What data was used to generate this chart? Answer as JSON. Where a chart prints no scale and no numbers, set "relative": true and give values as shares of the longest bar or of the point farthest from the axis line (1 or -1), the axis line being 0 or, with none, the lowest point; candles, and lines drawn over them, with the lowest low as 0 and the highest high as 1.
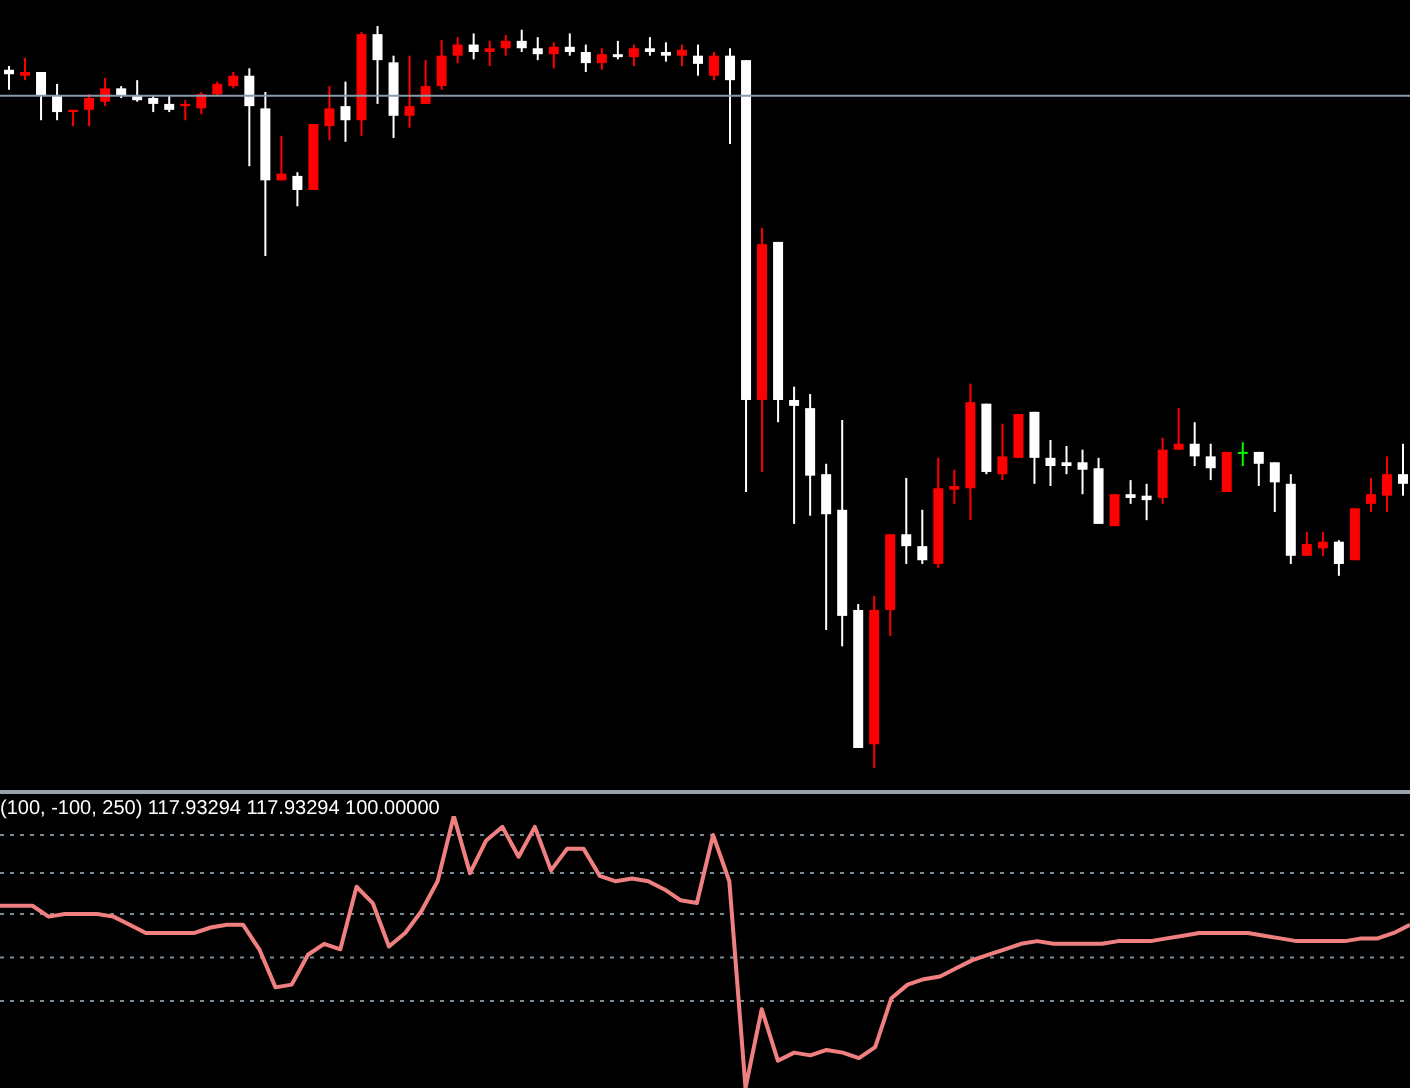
{
  "chart_data": [
    {
      "type": "candlestick",
      "relative": true,
      "tick_labels": false,
      "categories": [
        null,
        null,
        null,
        null,
        null,
        null,
        null,
        null,
        null,
        null,
        null,
        null,
        null,
        null,
        null,
        null,
        null,
        null,
        null,
        null,
        null,
        null,
        null,
        null,
        null,
        null,
        null,
        null,
        null,
        null,
        null,
        null,
        null,
        null,
        null,
        null,
        null,
        null,
        null,
        null,
        null,
        null,
        null,
        null,
        null,
        null,
        null,
        null,
        null,
        null,
        null,
        null,
        null,
        null,
        null,
        null,
        null,
        null,
        null,
        null,
        null,
        null,
        null,
        null,
        null,
        null,
        null,
        null,
        null,
        null,
        null,
        null,
        null,
        null,
        null,
        null,
        null,
        null,
        null,
        null,
        null,
        null,
        null,
        null,
        null,
        null,
        null,
        null
      ],
      "ohlc": [
        [
          0.941,
          0.946,
          0.914,
          0.935
        ],
        [
          0.933,
          0.957,
          0.927,
          0.938
        ],
        [
          0.938,
          0.938,
          0.873,
          0.906
        ],
        [
          0.906,
          0.922,
          0.873,
          0.884
        ],
        [
          0.884,
          0.887,
          0.865,
          0.887
        ],
        [
          0.887,
          0.908,
          0.865,
          0.903
        ],
        [
          0.898,
          0.93,
          0.892,
          0.916
        ],
        [
          0.916,
          0.919,
          0.903,
          0.906
        ],
        [
          0.906,
          0.927,
          0.898,
          0.9
        ],
        [
          0.903,
          0.906,
          0.884,
          0.895
        ],
        [
          0.895,
          0.906,
          0.884,
          0.887
        ],
        [
          0.892,
          0.9,
          0.873,
          0.895
        ],
        [
          0.889,
          0.911,
          0.881,
          0.908
        ],
        [
          0.908,
          0.925,
          0.906,
          0.922
        ],
        [
          0.919,
          0.938,
          0.916,
          0.933
        ],
        [
          0.933,
          0.943,
          0.811,
          0.892
        ],
        [
          0.889,
          0.911,
          0.69,
          0.792
        ],
        [
          0.792,
          0.852,
          0.792,
          0.801
        ],
        [
          0.798,
          0.803,
          0.757,
          0.779
        ],
        [
          0.779,
          0.868,
          0.779,
          0.868
        ],
        [
          0.865,
          0.919,
          0.846,
          0.889
        ],
        [
          0.892,
          0.925,
          0.844,
          0.873
        ],
        [
          0.873,
          0.992,
          0.852,
          0.989
        ],
        [
          0.989,
          1.0,
          0.895,
          0.954
        ],
        [
          0.951,
          0.96,
          0.849,
          0.879
        ],
        [
          0.879,
          0.96,
          0.863,
          0.892
        ],
        [
          0.895,
          0.954,
          0.895,
          0.919
        ],
        [
          0.919,
          0.981,
          0.914,
          0.96
        ],
        [
          0.96,
          0.985,
          0.95,
          0.975
        ],
        [
          0.975,
          0.99,
          0.955,
          0.965
        ],
        [
          0.965,
          0.98,
          0.946,
          0.97
        ],
        [
          0.97,
          0.988,
          0.96,
          0.98
        ],
        [
          0.98,
          0.995,
          0.965,
          0.97
        ],
        [
          0.97,
          0.985,
          0.954,
          0.962
        ],
        [
          0.962,
          0.978,
          0.943,
          0.972
        ],
        [
          0.972,
          0.99,
          0.96,
          0.965
        ],
        [
          0.965,
          0.975,
          0.938,
          0.95
        ],
        [
          0.95,
          0.97,
          0.941,
          0.962
        ],
        [
          0.962,
          0.98,
          0.955,
          0.958
        ],
        [
          0.958,
          0.975,
          0.946,
          0.97
        ],
        [
          0.97,
          0.985,
          0.96,
          0.965
        ],
        [
          0.965,
          0.978,
          0.952,
          0.96
        ],
        [
          0.96,
          0.975,
          0.946,
          0.968
        ],
        [
          0.96,
          0.975,
          0.933,
          0.949
        ],
        [
          0.933,
          0.965,
          0.927,
          0.96
        ],
        [
          0.96,
          0.97,
          0.841,
          0.927
        ],
        [
          0.954,
          0.954,
          0.372,
          0.496
        ],
        [
          0.496,
          0.728,
          0.399,
          0.706
        ],
        [
          0.709,
          0.709,
          0.466,
          0.496
        ],
        [
          0.496,
          0.514,
          0.329,
          0.488
        ],
        [
          0.485,
          0.504,
          0.34,
          0.394
        ],
        [
          0.396,
          0.41,
          0.186,
          0.342
        ],
        [
          0.348,
          0.469,
          0.164,
          0.205
        ],
        [
          0.213,
          0.221,
          0.027,
          0.027
        ],
        [
          0.032,
          0.232,
          0,
          0.213
        ],
        [
          0.213,
          0.315,
          0.178,
          0.315
        ],
        [
          0.315,
          0.391,
          0.275,
          0.299
        ],
        [
          0.299,
          0.348,
          0.275,
          0.28
        ],
        [
          0.275,
          0.418,
          0.27,
          0.377
        ],
        [
          0.375,
          0.402,
          0.356,
          0.38
        ],
        [
          0.377,
          0.518,
          0.334,
          0.493
        ],
        [
          0.491,
          0.491,
          0.396,
          0.399
        ],
        [
          0.396,
          0.464,
          0.388,
          0.42
        ],
        [
          0.418,
          0.477,
          0.418,
          0.477
        ],
        [
          0.48,
          0.48,
          0.383,
          0.418
        ],
        [
          0.418,
          0.442,
          0.38,
          0.407
        ],
        [
          0.412,
          0.434,
          0.396,
          0.407
        ],
        [
          0.412,
          0.429,
          0.369,
          0.402
        ],
        [
          0.404,
          0.418,
          0.329,
          0.329
        ],
        [
          0.326,
          0.369,
          0.326,
          0.369
        ],
        [
          0.369,
          0.388,
          0.356,
          0.364
        ],
        [
          0.367,
          0.383,
          0.334,
          0.361
        ],
        [
          0.364,
          0.445,
          0.356,
          0.429
        ],
        [
          0.429,
          0.485,
          0.429,
          0.437
        ],
        [
          0.437,
          0.466,
          0.407,
          0.42
        ],
        [
          0.42,
          0.437,
          0.388,
          0.404
        ],
        [
          0.372,
          0.426,
          0.372,
          0.426
        ],
        [
          0.426,
          0.439,
          0.407,
          0.426
        ],
        [
          0.426,
          0.426,
          0.38,
          0.41
        ],
        [
          0.412,
          0.412,
          0.345,
          0.385
        ],
        [
          0.383,
          0.396,
          0.275,
          0.286
        ],
        [
          0.286,
          0.318,
          0.286,
          0.302
        ],
        [
          0.296,
          0.318,
          0.286,
          0.305
        ],
        [
          0.305,
          0.307,
          0.259,
          0.275
        ],
        [
          0.28,
          0.35,
          0.28,
          0.35
        ],
        [
          0.356,
          0.391,
          0.345,
          0.369
        ],
        [
          0.367,
          0.42,
          0.345,
          0.396
        ],
        [
          0.396,
          0.437,
          0.367,
          0.383
        ]
      ],
      "colors": [
        "#ffffff",
        "#ff0000",
        "#ffffff",
        "#ffffff",
        "#ff0000",
        "#ff0000",
        "#ff0000",
        "#ffffff",
        "#ffffff",
        "#ffffff",
        "#ffffff",
        "#ff0000",
        "#ff0000",
        "#ff0000",
        "#ff0000",
        "#ffffff",
        "#ffffff",
        "#ff0000",
        "#ffffff",
        "#ff0000",
        "#ff0000",
        "#ffffff",
        "#ff0000",
        "#ffffff",
        "#ffffff",
        "#ff0000",
        "#ff0000",
        "#ff0000",
        "#ff0000",
        "#ffffff",
        "#ff0000",
        "#ff0000",
        "#ffffff",
        "#ffffff",
        "#ff0000",
        "#ffffff",
        "#ffffff",
        "#ff0000",
        "#ffffff",
        "#ff0000",
        "#ffffff",
        "#ffffff",
        "#ff0000",
        "#ffffff",
        "#ff0000",
        "#ffffff",
        "#ffffff",
        "#ff0000",
        "#ffffff",
        "#ffffff",
        "#ffffff",
        "#ffffff",
        "#ffffff",
        "#ffffff",
        "#ff0000",
        "#ff0000",
        "#ffffff",
        "#ffffff",
        "#ff0000",
        "#ff0000",
        "#ff0000",
        "#ffffff",
        "#ff0000",
        "#ff0000",
        "#ffffff",
        "#ffffff",
        "#ffffff",
        "#ffffff",
        "#ffffff",
        "#ff0000",
        "#ffffff",
        "#ffffff",
        "#ff0000",
        "#ff0000",
        "#ffffff",
        "#ffffff",
        "#ff0000",
        "#00ff00",
        "#ffffff",
        "#ffffff",
        "#ffffff",
        "#ff0000",
        "#ff0000",
        "#ffffff",
        "#ff0000",
        "#ff0000",
        "#ff0000",
        "#ffffff"
      ],
      "ref_lines": [
        {
          "axis": "y",
          "value": 0.906,
          "color": "#8a9aa8"
        }
      ]
    },
    {
      "type": "line",
      "relative": true,
      "tick_labels": false,
      "annotations": [
        "(100, -100, 250) 117.93294 117.93294 100.00000"
      ],
      "categories": [
        null,
        null,
        null,
        null,
        null,
        null,
        null,
        null,
        null,
        null,
        null,
        null,
        null,
        null,
        null,
        null,
        null,
        null,
        null,
        null,
        null,
        null,
        null,
        null,
        null,
        null,
        null,
        null,
        null,
        null,
        null,
        null,
        null,
        null,
        null,
        null,
        null,
        null,
        null,
        null,
        null,
        null,
        null,
        null,
        null,
        null,
        null,
        null,
        null,
        null,
        null,
        null,
        null,
        null,
        null,
        null,
        null,
        null,
        null,
        null,
        null,
        null,
        null,
        null,
        null,
        null,
        null,
        null,
        null,
        null,
        null,
        null,
        null,
        null,
        null,
        null,
        null,
        null,
        null,
        null,
        null,
        null,
        null,
        null,
        null,
        null,
        null,
        null
      ],
      "ref_lines": [
        {
          "axis": "y",
          "value": 0.93,
          "color": "#7a8a94",
          "line_style": "dotted"
        },
        {
          "axis": "y",
          "value": 0.79,
          "color": "#7a8a94",
          "line_style": "dotted"
        },
        {
          "axis": "y",
          "value": 0.64,
          "color": "#7a8a94",
          "line_style": "dotted"
        },
        {
          "axis": "y",
          "value": 0.48,
          "color": "#7a8a94",
          "line_style": "dotted"
        },
        {
          "axis": "y",
          "value": 0.32,
          "color": "#7a8a94",
          "line_style": "dotted"
        }
      ],
      "series": [
        {
          "type": "line",
          "color": "#f08080",
          "values": [
            0.67,
            0.67,
            0.67,
            0.63,
            0.64,
            0.64,
            0.64,
            0.63,
            0.6,
            0.57,
            0.57,
            0.57,
            0.57,
            0.59,
            0.6,
            0.6,
            0.51,
            0.37,
            0.38,
            0.49,
            0.53,
            0.51,
            0.74,
            0.68,
            0.52,
            0.57,
            0.65,
            0.76,
            1,
            0.79,
            0.91,
            0.96,
            0.85,
            0.96,
            0.8,
            0.88,
            0.88,
            0.78,
            0.76,
            0.77,
            0.76,
            0.73,
            0.69,
            0.68,
            0.93,
            0.76,
            0,
            0.29,
            0.1,
            0.13,
            0.12,
            0.14,
            0.13,
            0.11,
            0.15,
            0.33,
            0.38,
            0.4,
            0.41,
            0.44,
            0.47,
            0.49,
            0.51,
            0.53,
            0.54,
            0.53,
            0.53,
            0.53,
            0.53,
            0.54,
            0.54,
            0.54,
            0.55,
            0.56,
            0.57,
            0.57,
            0.57,
            0.57,
            0.56,
            0.55,
            0.54,
            0.54,
            0.54,
            0.54,
            0.55,
            0.55,
            0.57,
            0.6
          ],
          "line_style": "solid"
        }
      ]
    }
  ]
}
